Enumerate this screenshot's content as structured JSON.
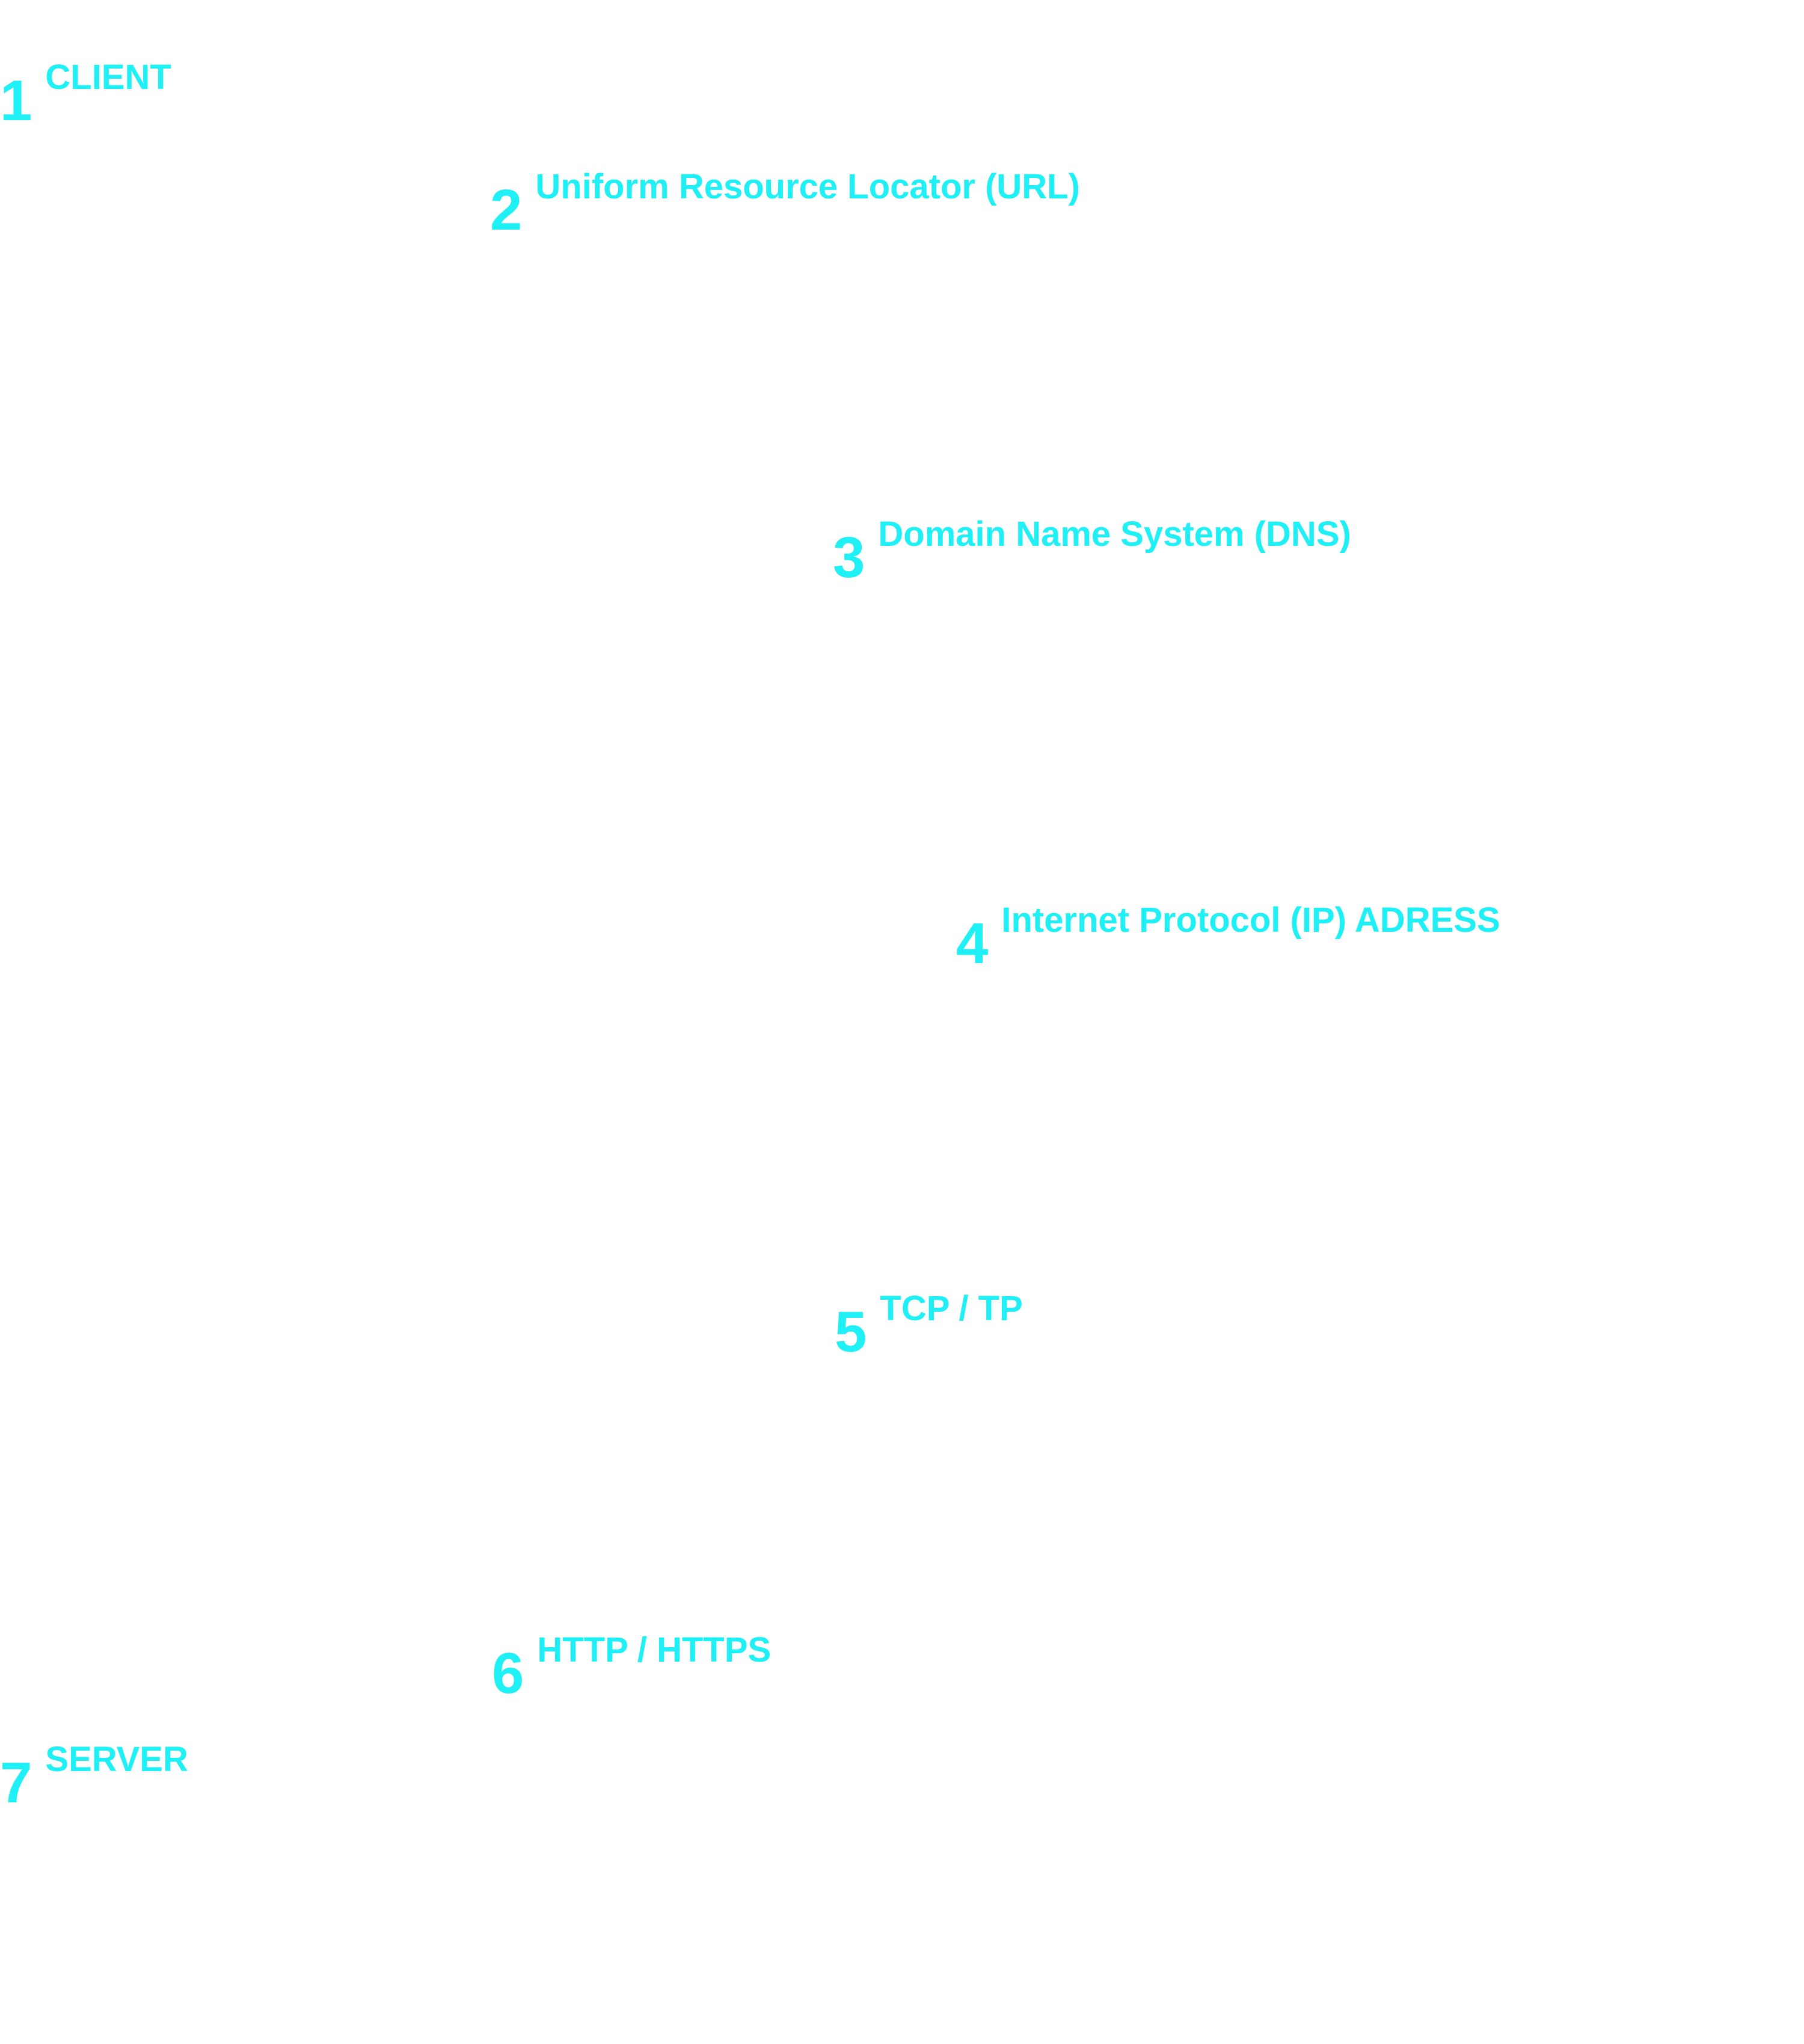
{
  "steps": [
    {
      "number": "1",
      "label": "CLIENT"
    },
    {
      "number": "2",
      "label": "Uniform Resource Locator (URL)"
    },
    {
      "number": "3",
      "label": "Domain Name System (DNS)"
    },
    {
      "number": "4",
      "label": "Internet Protocol (IP) ADRESS"
    },
    {
      "number": "5",
      "label": "TCP / TP"
    },
    {
      "number": "6",
      "label": "HTTP / HTTPS"
    },
    {
      "number": "7",
      "label": "SERVER"
    }
  ],
  "colors": {
    "accent": "#1ff0f5",
    "background": "#ffffff"
  }
}
